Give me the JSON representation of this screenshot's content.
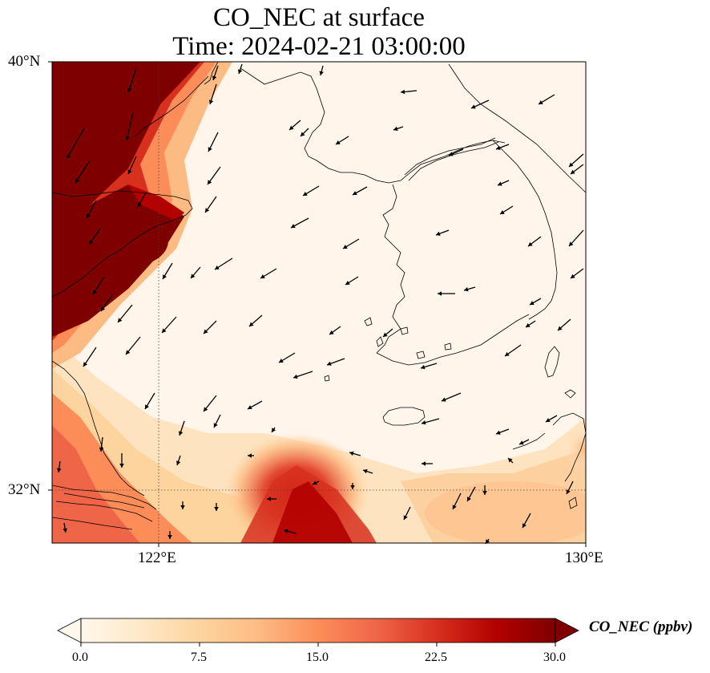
{
  "title": {
    "line1": "CO_NEC at surface",
    "line2": "Time: 2024-02-21 03:00:00"
  },
  "map": {
    "lat_labels": [
      "40°N",
      "32°N"
    ],
    "lon_labels": [
      "122°E",
      "130°E"
    ],
    "extent": {
      "lon_min": 120,
      "lon_max": 130,
      "lat_min": 31,
      "lat_max": 40
    },
    "gridlines": {
      "lons": [
        122
      ],
      "lats": [
        32
      ],
      "style": "dotted"
    },
    "field": "CO_NEC",
    "vectors": "wind",
    "colors": {
      "low": "#fff5eb",
      "mid": "#fdae6b",
      "high": "#7f0000",
      "coast": "#000000"
    }
  },
  "colorbar": {
    "label": "CO_NEC (ppbv)",
    "ticks": [
      "0.0",
      "7.5",
      "15.0",
      "22.5",
      "30.0"
    ],
    "min": 0,
    "max": 30,
    "extend": "both",
    "colormap": "OrRd",
    "stops": [
      "#fff7ec",
      "#fee8c8",
      "#fdd49e",
      "#fdbb84",
      "#fc8d59",
      "#ef6548",
      "#d7301f",
      "#b30000",
      "#7f0000"
    ]
  }
}
